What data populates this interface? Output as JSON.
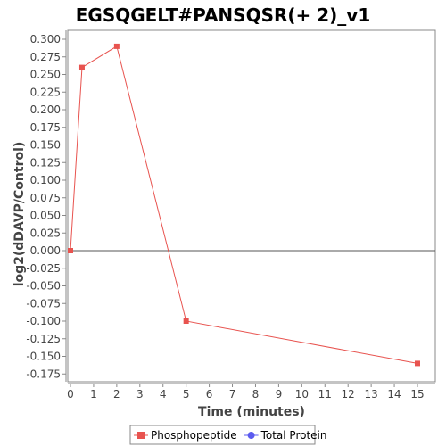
{
  "chart_data": {
    "type": "line",
    "title": "EGSQGELT#PANSQSR(+ 2)_v1",
    "xlabel": "Time (minutes)",
    "ylabel": "log2(dDAVP/Control)",
    "xlim": [
      0,
      15.5
    ],
    "ylim": [
      -0.185,
      0.31
    ],
    "x_ticks": [
      0,
      1,
      2,
      3,
      4,
      5,
      6,
      7,
      8,
      9,
      10,
      11,
      12,
      13,
      14,
      15
    ],
    "y_ticks": [
      0.3,
      0.275,
      0.25,
      0.225,
      0.2,
      0.175,
      0.15,
      0.125,
      0.1,
      0.075,
      0.05,
      0.025,
      0.0,
      -0.025,
      -0.05,
      -0.075,
      -0.1,
      -0.125,
      -0.15,
      -0.175
    ],
    "y_tick_labels": [
      "0.300",
      "0.275",
      "0.250",
      "0.225",
      "0.200",
      "0.175",
      "0.150",
      "0.125",
      "0.100",
      "0.075",
      "0.050",
      "0.025",
      "0.000",
      "-0.025",
      "-0.050",
      "-0.075",
      "-0.100",
      "-0.125",
      "-0.150",
      "-0.175"
    ],
    "zero_line": true,
    "grid": false,
    "legend_position": "bottom-center",
    "series": [
      {
        "name": "Phosphopeptide",
        "color": "#e8534f",
        "marker": "square",
        "x": [
          0,
          0.5,
          2,
          5,
          15
        ],
        "y": [
          0.0,
          0.26,
          0.29,
          -0.1,
          -0.16
        ]
      },
      {
        "name": "Total Protein",
        "color": "#5b5bef",
        "marker": "circle",
        "x": [],
        "y": []
      }
    ]
  }
}
